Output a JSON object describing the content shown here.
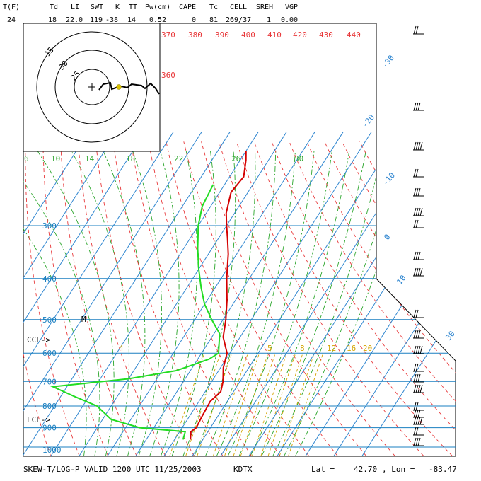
{
  "header": {
    "labels": [
      "T(F)",
      "Td",
      "LI",
      "SWT",
      "K",
      "TT",
      "Pw(cm)",
      "CAPE",
      "Tc",
      "CELL",
      "SREH",
      "VGP"
    ],
    "values": [
      "24",
      "18",
      "22.0",
      "119",
      "-38",
      "14",
      "0.52",
      "0",
      "81",
      "269/37",
      "1",
      "0.00"
    ]
  },
  "footer": {
    "title": "SKEW-T/LOG-P VALID 1200 UTC 11/25/2003",
    "station": "KDTX",
    "lat_label": "Lat =",
    "lat": "42.70",
    "lon_label": ", Lon =",
    "lon": "-83.47"
  },
  "colors": {
    "isobar": "#1a7fc0",
    "isotherm": "#2f86d0",
    "dry_adiabat": "#e8383a",
    "moist_adiabat": "#2aa52a",
    "mixing_ratio": "#d4a400",
    "temperature": "#d40000",
    "dewpoint": "#22dd22",
    "hodograph_ring": "#000000"
  },
  "chart_data": {
    "type": "skew-t log-p",
    "pressure_axis": {
      "labels": [
        "300",
        "400",
        "500",
        "600",
        "700",
        "800",
        "900",
        "1000"
      ],
      "values": [
        300,
        400,
        500,
        600,
        700,
        800,
        900,
        1000
      ]
    },
    "isotherm_labels": [
      "-30",
      "-20",
      "-10",
      "0",
      "10",
      "30"
    ],
    "dry_adiabat_labels": [
      "370",
      "380",
      "390",
      "400",
      "410",
      "420",
      "430",
      "440",
      "360"
    ],
    "moist_adiabat_labels": [
      "6",
      "10",
      "14",
      "18",
      "22",
      "26",
      "30"
    ],
    "mixing_ratio_labels": [
      "4",
      "5",
      "8",
      "12",
      "16",
      "20"
    ],
    "annotations": [
      "CCL->",
      "LCL->",
      "M"
    ],
    "temperature_profile": [
      {
        "p": 960,
        "t": -4.4
      },
      {
        "p": 920,
        "t": -6.0
      },
      {
        "p": 900,
        "t": -5.0
      },
      {
        "p": 850,
        "t": -5.5
      },
      {
        "p": 780,
        "t": -6.0
      },
      {
        "p": 740,
        "t": -4.5
      },
      {
        "p": 700,
        "t": -6.0
      },
      {
        "p": 650,
        "t": -9.0
      },
      {
        "p": 600,
        "t": -11.0
      },
      {
        "p": 550,
        "t": -16.0
      },
      {
        "p": 500,
        "t": -19.0
      },
      {
        "p": 450,
        "t": -23.0
      },
      {
        "p": 400,
        "t": -28.0
      },
      {
        "p": 350,
        "t": -33.0
      },
      {
        "p": 320,
        "t": -37.0
      },
      {
        "p": 300,
        "t": -40.0
      },
      {
        "p": 280,
        "t": -43.0
      },
      {
        "p": 250,
        "t": -46.0
      },
      {
        "p": 230,
        "t": -45.0
      },
      {
        "p": 210,
        "t": -48.0
      },
      {
        "p": 200,
        "t": -50.0
      }
    ],
    "dewpoint_profile": [
      {
        "p": 960,
        "t": -7.0
      },
      {
        "p": 920,
        "t": -8.0
      },
      {
        "p": 900,
        "t": -25.0
      },
      {
        "p": 860,
        "t": -37.0
      },
      {
        "p": 800,
        "t": -45.0
      },
      {
        "p": 760,
        "t": -55.0
      },
      {
        "p": 720,
        "t": -65.0
      },
      {
        "p": 690,
        "t": -40.0
      },
      {
        "p": 660,
        "t": -25.0
      },
      {
        "p": 620,
        "t": -16.0
      },
      {
        "p": 600,
        "t": -14.0
      },
      {
        "p": 540,
        "t": -18.0
      },
      {
        "p": 500,
        "t": -24.0
      },
      {
        "p": 460,
        "t": -30.0
      },
      {
        "p": 420,
        "t": -35.0
      },
      {
        "p": 380,
        "t": -40.0
      },
      {
        "p": 340,
        "t": -45.0
      },
      {
        "p": 300,
        "t": -50.0
      },
      {
        "p": 270,
        "t": -53.0
      },
      {
        "p": 240,
        "t": -54.0
      }
    ],
    "hodograph": {
      "ring_labels": [
        "15",
        "30",
        "25"
      ]
    }
  }
}
